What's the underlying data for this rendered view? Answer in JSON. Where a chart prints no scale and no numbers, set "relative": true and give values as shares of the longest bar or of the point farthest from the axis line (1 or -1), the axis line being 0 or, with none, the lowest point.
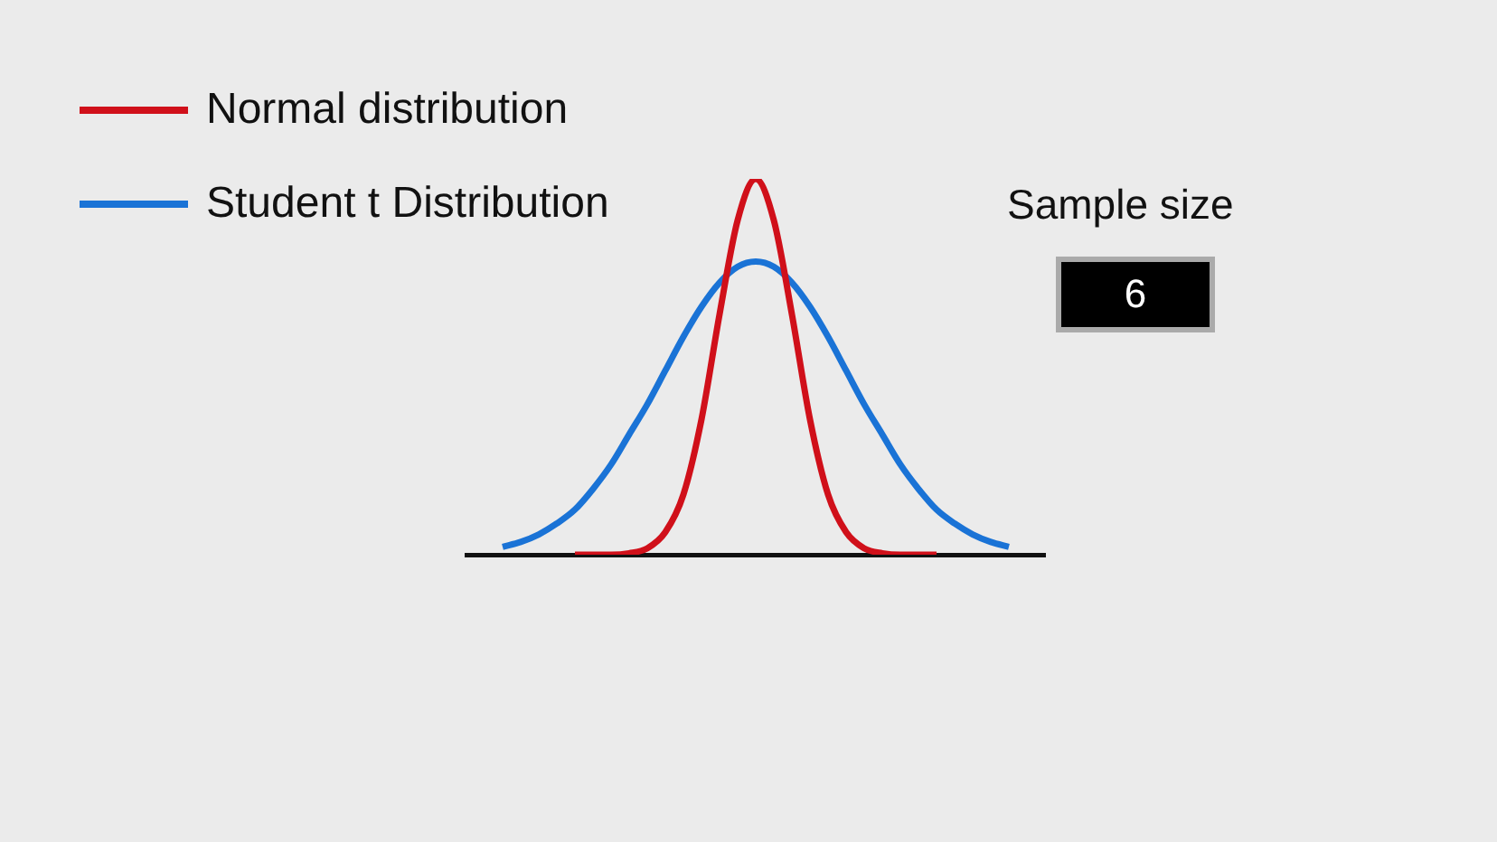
{
  "chart_data": {
    "type": "line",
    "relative": true,
    "legend": "top left",
    "categories": [
      null,
      null,
      null,
      null,
      null,
      null,
      null,
      null,
      null,
      null,
      null,
      null,
      null,
      null,
      null,
      null,
      null,
      null,
      null,
      null,
      null,
      null,
      null,
      null,
      null,
      null,
      null,
      null,
      null,
      null,
      null,
      null,
      null
    ],
    "series": [
      {
        "name": "Normal distribution",
        "color": "#d0101a",
        "values": [
          null,
          null,
          null,
          null,
          null,
          null,
          0,
          0,
          0,
          0.004,
          0.017,
          0.06,
          0.16,
          0.36,
          0.64,
          0.89,
          1,
          0.89,
          0.64,
          0.36,
          0.16,
          0.06,
          0.017,
          0.004,
          0,
          0,
          0,
          null,
          null,
          null,
          null,
          null,
          null
        ]
      },
      {
        "name": "Student t Distribution",
        "color": "#1a73d6",
        "values": [
          null,
          null,
          0.021,
          0.034,
          0.054,
          0.083,
          0.12,
          0.175,
          0.24,
          0.32,
          0.4,
          0.49,
          0.58,
          0.66,
          0.724,
          0.766,
          0.78,
          0.766,
          0.724,
          0.66,
          0.58,
          0.49,
          0.4,
          0.32,
          0.24,
          0.175,
          0.12,
          0.083,
          0.054,
          0.034,
          0.021,
          null,
          null
        ]
      }
    ],
    "annotations": [
      "Sample size",
      "6"
    ]
  }
}
